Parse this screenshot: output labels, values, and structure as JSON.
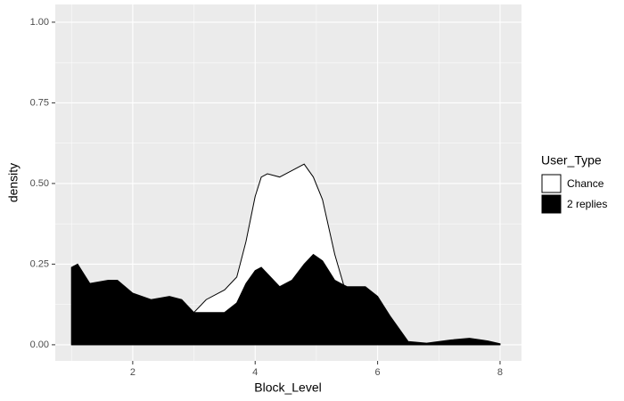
{
  "chart_data": {
    "type": "density",
    "x_label": "Block_Level",
    "y_label": "density",
    "legend_title": "User_Type",
    "x": [
      1.0,
      1.1,
      1.3,
      1.6,
      1.75,
      2.0,
      2.3,
      2.6,
      2.8,
      3.0,
      3.2,
      3.5,
      3.7,
      3.85,
      4.0,
      4.1,
      4.2,
      4.4,
      4.6,
      4.8,
      4.95,
      5.1,
      5.3,
      5.5,
      5.8,
      6.0,
      6.2,
      6.5,
      6.8,
      7.2,
      7.5,
      7.8,
      8.0
    ],
    "series": [
      {
        "name": "Chance",
        "color": "#ffffff",
        "outline": "#000000",
        "values": [
          0,
          0,
          0,
          0,
          0,
          0,
          0,
          0,
          0,
          0.1,
          0.14,
          0.17,
          0.21,
          0.32,
          0.46,
          0.52,
          0.53,
          0.52,
          0.54,
          0.56,
          0.52,
          0.45,
          0.28,
          0.15,
          0,
          0,
          0,
          0,
          0,
          0,
          0,
          0,
          0
        ]
      },
      {
        "name": "2 replies",
        "color": "#000000",
        "outline": "#000000",
        "values": [
          0.24,
          0.25,
          0.19,
          0.2,
          0.2,
          0.16,
          0.14,
          0.15,
          0.14,
          0.1,
          0.1,
          0.1,
          0.13,
          0.19,
          0.23,
          0.24,
          0.22,
          0.18,
          0.2,
          0.25,
          0.28,
          0.26,
          0.2,
          0.18,
          0.18,
          0.15,
          0.09,
          0.01,
          0.005,
          0.015,
          0.02,
          0.012,
          0.003
        ]
      }
    ],
    "xlim": [
      0.735,
      8.35
    ],
    "ylim": [
      -0.05,
      1.055
    ],
    "xticks": [
      2,
      4,
      6,
      8
    ],
    "yticks": [
      {
        "value": 0,
        "label": "0.00"
      },
      {
        "value": 0.25,
        "label": "0.25"
      },
      {
        "value": 0.5,
        "label": "0.50"
      },
      {
        "value": 0.75,
        "label": "0.75"
      },
      {
        "value": 1,
        "label": "1.00"
      }
    ],
    "grid": true,
    "legend": "right"
  }
}
